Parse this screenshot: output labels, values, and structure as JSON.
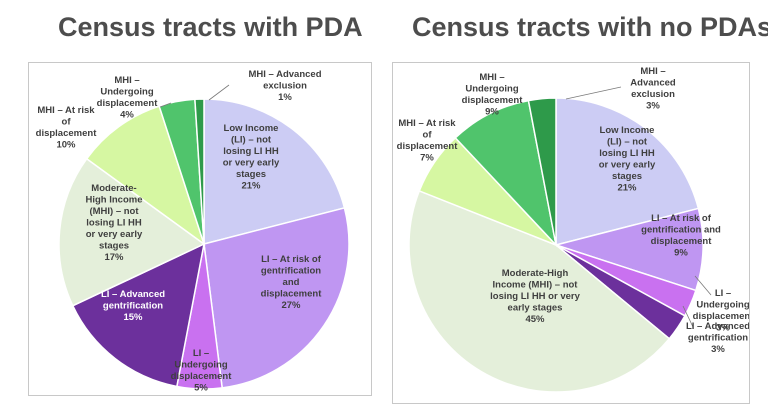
{
  "chart_data": [
    {
      "type": "pie",
      "title": "Census tracts with PDA",
      "slices": [
        {
          "label": "Low Income (LI) – not losing LI HH or very early stages",
          "value": 21,
          "pct": "21%",
          "color": "#ccccf4"
        },
        {
          "label": "LI – At risk of gentrification and displacement",
          "value": 27,
          "pct": "27%",
          "color": "#bf96f2"
        },
        {
          "label": "LI – Undergoing displacement",
          "value": 5,
          "pct": "5%",
          "color": "#c971f0"
        },
        {
          "label": "LI – Advanced gentrification",
          "value": 15,
          "pct": "15%",
          "color": "#6c309c"
        },
        {
          "label": "Moderate-High Income (MHI) – not losing LI HH or very early stages",
          "value": 17,
          "pct": "17%",
          "color": "#e4efda"
        },
        {
          "label": "MHI – At risk of displacement",
          "value": 10,
          "pct": "10%",
          "color": "#d6f7a2"
        },
        {
          "label": "MHI – Undergoing displacement",
          "value": 4,
          "pct": "4%",
          "color": "#50c46c"
        },
        {
          "label": "MHI – Advanced exclusion",
          "value": 1,
          "pct": "1%",
          "color": "#2e9a4a"
        }
      ]
    },
    {
      "type": "pie",
      "title": "Census tracts with no PDAs",
      "slices": [
        {
          "label": "Low Income (LI) – not losing LI HH or very early stages",
          "value": 21,
          "pct": "21%",
          "color": "#ccccf4"
        },
        {
          "label": "LI – At risk of gentrification and displacement",
          "value": 9,
          "pct": "9%",
          "color": "#bf96f2"
        },
        {
          "label": "LI – Undergoing displacement",
          "value": 3,
          "pct": "3%",
          "color": "#c971f0"
        },
        {
          "label": "LI – Advanced gentrification",
          "value": 3,
          "pct": "3%",
          "color": "#6c309c"
        },
        {
          "label": "Moderate-High Income (MHI) – not losing LI HH or very early stages",
          "value": 45,
          "pct": "45%",
          "color": "#e4efda"
        },
        {
          "label": "MHI – At risk of displacement",
          "value": 7,
          "pct": "7%",
          "color": "#d6f7a2"
        },
        {
          "label": "MHI – Undergoing displacement",
          "value": 9,
          "pct": "9%",
          "color": "#50c46c"
        },
        {
          "label": "MHI – Advanced exclusion",
          "value": 3,
          "pct": "3%",
          "color": "#2e9a4a"
        }
      ]
    }
  ]
}
